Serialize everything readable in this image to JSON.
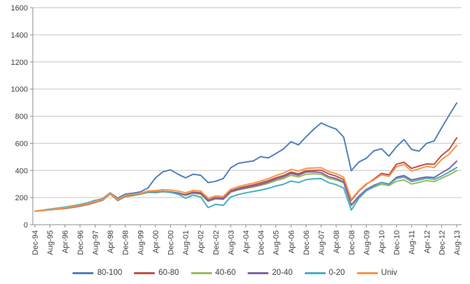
{
  "chart_data": {
    "type": "line",
    "title": "",
    "xlabel": "",
    "ylabel": "",
    "ylim": [
      0,
      1600
    ],
    "y_ticks": [
      0,
      200,
      400,
      600,
      800,
      1000,
      1200,
      1400,
      1600
    ],
    "grid": "horizontal",
    "legend_position": "bottom",
    "axis_color": "#8C8C8C",
    "gridline_color": "#C6C6C6",
    "text_color": "#3F3F3F",
    "x_tick_labels": [
      "Dec-94",
      "Aug-95",
      "Apr-96",
      "Dec-96",
      "Aug-97",
      "Apr-98",
      "Dec-98",
      "Aug-99",
      "Apr-00",
      "Dec-00",
      "Aug-01",
      "Apr-02",
      "Dec-02",
      "Aug-03",
      "Apr-04",
      "Dec-04",
      "Aug-05",
      "Apr-06",
      "Dec-06",
      "Aug-07",
      "Apr-08",
      "Dec-08",
      "Aug-09",
      "Apr-10",
      "Dec-10",
      "Aug-11",
      "Apr-12",
      "Dec-12",
      "Aug-13"
    ],
    "sample_dates": [
      "Dec-94",
      "Apr-95",
      "Aug-95",
      "Dec-95",
      "Apr-96",
      "Aug-96",
      "Dec-96",
      "Apr-97",
      "Aug-97",
      "Dec-97",
      "Apr-98",
      "Aug-98",
      "Dec-98",
      "Apr-99",
      "Aug-99",
      "Dec-99",
      "Apr-00",
      "Aug-00",
      "Dec-00",
      "Apr-01",
      "Aug-01",
      "Dec-01",
      "Apr-02",
      "Aug-02",
      "Dec-02",
      "Apr-03",
      "Aug-03",
      "Dec-03",
      "Apr-04",
      "Aug-04",
      "Dec-04",
      "Apr-05",
      "Aug-05",
      "Dec-05",
      "Apr-06",
      "Aug-06",
      "Dec-06",
      "Apr-07",
      "Aug-07",
      "Dec-07",
      "Apr-08",
      "Aug-08",
      "Dec-08",
      "Apr-09",
      "Aug-09",
      "Dec-09",
      "Apr-10",
      "Aug-10",
      "Dec-10",
      "Apr-11",
      "Aug-11",
      "Dec-11",
      "Apr-12",
      "Aug-12",
      "Dec-12",
      "Apr-13",
      "Aug-13"
    ],
    "series": [
      {
        "name": "80-100",
        "color": "#4F81BD",
        "values": [
          100,
          107,
          114,
          120,
          128,
          136,
          146,
          158,
          178,
          192,
          235,
          196,
          225,
          232,
          242,
          270,
          345,
          390,
          405,
          372,
          345,
          372,
          365,
          310,
          320,
          340,
          420,
          452,
          462,
          470,
          502,
          492,
          525,
          558,
          612,
          588,
          648,
          702,
          750,
          725,
          705,
          645,
          398,
          462,
          490,
          545,
          560,
          505,
          575,
          628,
          555,
          542,
          600,
          618,
          715,
          808,
          898
        ]
      },
      {
        "name": "60-80",
        "color": "#C0504D",
        "values": [
          100,
          104,
          109,
          114,
          120,
          127,
          137,
          148,
          165,
          180,
          228,
          178,
          208,
          215,
          225,
          238,
          238,
          245,
          240,
          232,
          222,
          240,
          235,
          182,
          200,
          196,
          250,
          268,
          282,
          294,
          308,
          325,
          346,
          362,
          388,
          375,
          398,
          400,
          402,
          375,
          358,
          332,
          180,
          248,
          298,
          336,
          378,
          368,
          446,
          460,
          415,
          432,
          448,
          445,
          512,
          555,
          640
        ]
      },
      {
        "name": "40-60",
        "color": "#9BBB59",
        "values": [
          100,
          105,
          110,
          116,
          122,
          130,
          140,
          152,
          168,
          182,
          229,
          180,
          210,
          216,
          226,
          240,
          235,
          242,
          238,
          230,
          215,
          232,
          226,
          172,
          190,
          186,
          240,
          256,
          268,
          278,
          290,
          305,
          325,
          340,
          365,
          352,
          372,
          375,
          372,
          342,
          330,
          308,
          140,
          200,
          250,
          278,
          298,
          288,
          320,
          330,
          300,
          312,
          325,
          318,
          342,
          368,
          398
        ]
      },
      {
        "name": "20-40",
        "color": "#8064A2",
        "values": [
          100,
          105,
          111,
          117,
          123,
          131,
          141,
          153,
          170,
          184,
          230,
          182,
          212,
          218,
          228,
          242,
          240,
          246,
          242,
          234,
          220,
          236,
          230,
          176,
          194,
          190,
          244,
          260,
          272,
          284,
          298,
          315,
          336,
          352,
          378,
          365,
          388,
          390,
          385,
          354,
          340,
          316,
          146,
          210,
          260,
          290,
          312,
          300,
          350,
          362,
          330,
          342,
          352,
          348,
          382,
          415,
          468
        ]
      },
      {
        "name": "0-20",
        "color": "#4BACC6",
        "values": [
          100,
          107,
          115,
          122,
          130,
          139,
          149,
          162,
          180,
          188,
          233,
          188,
          218,
          222,
          230,
          244,
          242,
          246,
          238,
          225,
          195,
          218,
          205,
          126,
          150,
          142,
          205,
          222,
          235,
          245,
          255,
          268,
          285,
          298,
          322,
          310,
          332,
          338,
          340,
          310,
          295,
          270,
          108,
          195,
          250,
          282,
          310,
          296,
          340,
          352,
          318,
          330,
          342,
          335,
          358,
          388,
          422
        ]
      },
      {
        "name": "Univ",
        "color": "#F79646",
        "values": [
          100,
          106,
          112,
          118,
          125,
          133,
          143,
          155,
          172,
          186,
          232,
          185,
          215,
          222,
          232,
          248,
          252,
          258,
          255,
          248,
          235,
          252,
          248,
          196,
          212,
          208,
          262,
          280,
          295,
          307,
          322,
          340,
          362,
          380,
          408,
          395,
          415,
          418,
          420,
          392,
          376,
          350,
          188,
          252,
          302,
          330,
          368,
          356,
          428,
          444,
          396,
          412,
          430,
          422,
          480,
          520,
          585
        ]
      }
    ]
  }
}
